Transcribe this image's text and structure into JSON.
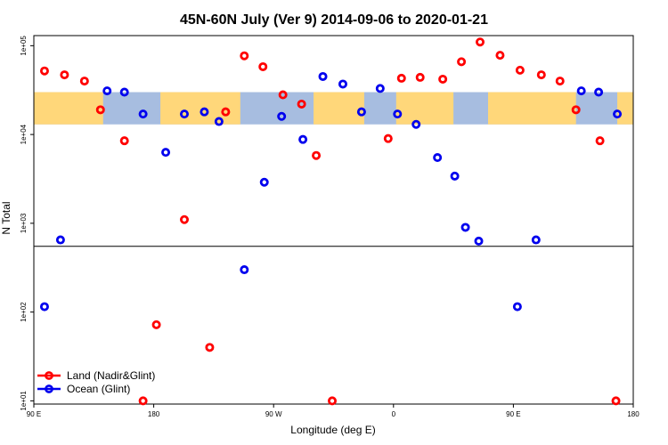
{
  "chart_data": {
    "type": "scatter",
    "title": "45N-60N July (Ver 9)   2014-09-06 to 2020-01-21",
    "xlabel": "Longitude (deg E)",
    "ylabel": "N Total",
    "x_ticks": [
      {
        "pos": 90,
        "label": "90 E"
      },
      {
        "pos": 180,
        "label": "180"
      },
      {
        "pos": 270,
        "label": "90 W"
      },
      {
        "pos": 360,
        "label": "0"
      },
      {
        "pos": 450,
        "label": "90 E"
      },
      {
        "pos": 540,
        "label": "180"
      }
    ],
    "y_ticks": [
      {
        "value": 10,
        "label": "1e+01"
      },
      {
        "value": 100,
        "label": "1e+02"
      },
      {
        "value": 1000,
        "label": "1e+03"
      },
      {
        "value": 10000,
        "label": "1e+04"
      },
      {
        "value": 100000,
        "label": "1e+05"
      }
    ],
    "xlim": [
      90,
      540
    ],
    "ylim": [
      9.2,
      130000
    ],
    "y_scale": "log",
    "reference_line": 550,
    "map_strip": {
      "y_top": 30000,
      "y_bottom": 13000,
      "land_color": "#ffd77a",
      "ocean_color": "#a7bde0"
    },
    "legend_placement": "bottom-left",
    "series": [
      {
        "name": "Land (Nadir&Glint)",
        "color": "#ff0000",
        "points": [
          {
            "x": 98,
            "y": 52000
          },
          {
            "x": 113,
            "y": 47000
          },
          {
            "x": 128,
            "y": 40000
          },
          {
            "x": 140,
            "y": 19000
          },
          {
            "x": 158,
            "y": 8500
          },
          {
            "x": 172,
            "y": 10
          },
          {
            "x": 182,
            "y": 72
          },
          {
            "x": 203,
            "y": 1100
          },
          {
            "x": 222,
            "y": 40
          },
          {
            "x": 234,
            "y": 18000
          },
          {
            "x": 248,
            "y": 77000
          },
          {
            "x": 262,
            "y": 58000
          },
          {
            "x": 277,
            "y": 28000
          },
          {
            "x": 291,
            "y": 22000
          },
          {
            "x": 302,
            "y": 5800
          },
          {
            "x": 314,
            "y": 10
          },
          {
            "x": 356,
            "y": 9000
          },
          {
            "x": 366,
            "y": 43000
          },
          {
            "x": 380,
            "y": 44000
          },
          {
            "x": 397,
            "y": 42000
          },
          {
            "x": 411,
            "y": 66000
          },
          {
            "x": 425,
            "y": 110000
          },
          {
            "x": 440,
            "y": 78000
          },
          {
            "x": 455,
            "y": 53000
          },
          {
            "x": 471,
            "y": 47000
          },
          {
            "x": 485,
            "y": 40000
          },
          {
            "x": 497,
            "y": 19000
          },
          {
            "x": 515,
            "y": 8500
          },
          {
            "x": 527,
            "y": 10
          }
        ]
      },
      {
        "name": "Ocean (Glint)",
        "color": "#0000ee",
        "points": [
          {
            "x": 98,
            "y": 115
          },
          {
            "x": 110,
            "y": 650
          },
          {
            "x": 145,
            "y": 31000
          },
          {
            "x": 158,
            "y": 30000
          },
          {
            "x": 172,
            "y": 17000
          },
          {
            "x": 189,
            "y": 6300
          },
          {
            "x": 203,
            "y": 17000
          },
          {
            "x": 218,
            "y": 18000
          },
          {
            "x": 229,
            "y": 14000
          },
          {
            "x": 248,
            "y": 300
          },
          {
            "x": 263,
            "y": 2900
          },
          {
            "x": 276,
            "y": 16000
          },
          {
            "x": 292,
            "y": 8800
          },
          {
            "x": 307,
            "y": 45000
          },
          {
            "x": 322,
            "y": 37000
          },
          {
            "x": 336,
            "y": 18000
          },
          {
            "x": 350,
            "y": 33000
          },
          {
            "x": 363,
            "y": 17000
          },
          {
            "x": 377,
            "y": 13000
          },
          {
            "x": 393,
            "y": 5500
          },
          {
            "x": 406,
            "y": 3400
          },
          {
            "x": 414,
            "y": 900
          },
          {
            "x": 424,
            "y": 630
          },
          {
            "x": 453,
            "y": 115
          },
          {
            "x": 467,
            "y": 650
          },
          {
            "x": 501,
            "y": 31000
          },
          {
            "x": 514,
            "y": 30000
          },
          {
            "x": 528,
            "y": 17000
          }
        ]
      }
    ]
  }
}
